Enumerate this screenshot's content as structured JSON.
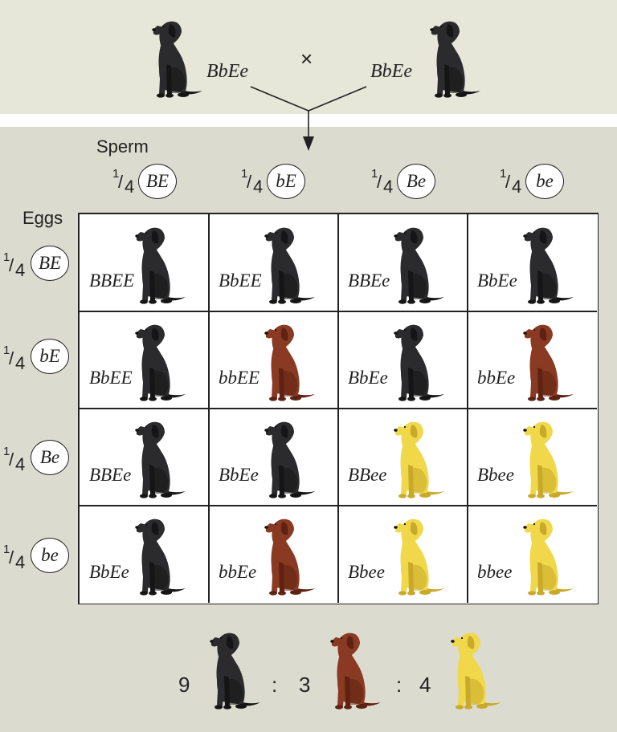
{
  "parents": {
    "left_genotype": "BbEe",
    "right_genotype": "BbEe",
    "cross_symbol": "×",
    "left_dog": "black-lab",
    "right_dog": "black-lab"
  },
  "sperm_label": "Sperm",
  "eggs_label": "Eggs",
  "gamete_fraction": {
    "num": "1",
    "den": "4"
  },
  "sperm_gametes": [
    "BE",
    "bE",
    "Be",
    "be"
  ],
  "egg_gametes": [
    "BE",
    "bE",
    "Be",
    "be"
  ],
  "cells": [
    [
      {
        "genotype": "BBEE",
        "coat": "black"
      },
      {
        "genotype": "BbEE",
        "coat": "black"
      },
      {
        "genotype": "BBEe",
        "coat": "black"
      },
      {
        "genotype": "BbEe",
        "coat": "black"
      }
    ],
    [
      {
        "genotype": "BbEE",
        "coat": "black"
      },
      {
        "genotype": "bbEE",
        "coat": "chocolate"
      },
      {
        "genotype": "BbEe",
        "coat": "black"
      },
      {
        "genotype": "bbEe",
        "coat": "chocolate"
      }
    ],
    [
      {
        "genotype": "BBEe",
        "coat": "black"
      },
      {
        "genotype": "BbEe",
        "coat": "black"
      },
      {
        "genotype": "BBee",
        "coat": "yellow"
      },
      {
        "genotype": "Bbee",
        "coat": "yellow"
      }
    ],
    [
      {
        "genotype": "BbEe",
        "coat": "black"
      },
      {
        "genotype": "bbEe",
        "coat": "chocolate"
      },
      {
        "genotype": "Bbee",
        "coat": "yellow"
      },
      {
        "genotype": "bbee",
        "coat": "yellow"
      }
    ]
  ],
  "ratio": {
    "black": "9",
    "chocolate": "3",
    "yellow": "4",
    "separator": ":"
  },
  "colors": {
    "black": "#2b2b2d",
    "black_shade": "#151516",
    "chocolate": "#8a3a22",
    "chocolate_shade": "#5e2212",
    "yellow": "#f0d84a",
    "yellow_shade": "#c9a92a"
  }
}
